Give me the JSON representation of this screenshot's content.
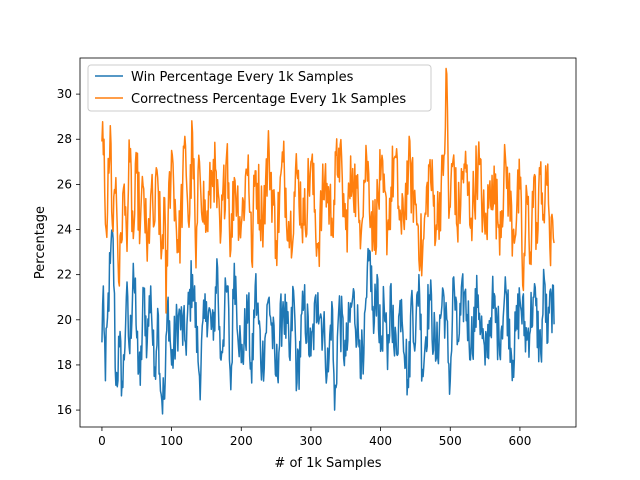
{
  "chart_data": {
    "type": "line",
    "title": "",
    "xlabel": "# of 1k Samples",
    "ylabel": "Percentage",
    "xlim": [
      -31.5,
      680.5
    ],
    "ylim": [
      15.25,
      31.6
    ],
    "xticks": [
      0,
      100,
      200,
      300,
      400,
      500,
      600
    ],
    "yticks": [
      16,
      18,
      20,
      22,
      24,
      26,
      28,
      30
    ],
    "grid": false,
    "legend_placement": "top-left",
    "n_points": 650,
    "series": [
      {
        "name": "Win Percentage Every 1k Samples",
        "color": "#1f77b4",
        "keypoints": [
          [
            0,
            19.0
          ],
          [
            2,
            21.5
          ],
          [
            5,
            17.3
          ],
          [
            8,
            20.1
          ],
          [
            12,
            22.5
          ],
          [
            16,
            23.6
          ],
          [
            20,
            17.1
          ],
          [
            25,
            18.8
          ],
          [
            30,
            17.0
          ],
          [
            35,
            21.0
          ],
          [
            40,
            18.5
          ],
          [
            45,
            22.5
          ],
          [
            50,
            19.2
          ],
          [
            55,
            17.1
          ],
          [
            60,
            21.3
          ],
          [
            65,
            19.0
          ],
          [
            70,
            21.5
          ],
          [
            75,
            17.5
          ],
          [
            80,
            20.5
          ],
          [
            85,
            16.7
          ],
          [
            90,
            16.5
          ],
          [
            95,
            21.0
          ],
          [
            100,
            18.0
          ],
          [
            110,
            20.2
          ],
          [
            120,
            19.0
          ],
          [
            130,
            22.0
          ],
          [
            140,
            17.5
          ],
          [
            150,
            20.8
          ],
          [
            160,
            19.1
          ],
          [
            165,
            22.7
          ],
          [
            170,
            18.3
          ],
          [
            180,
            21.5
          ],
          [
            185,
            16.9
          ],
          [
            190,
            22.5
          ],
          [
            200,
            18.1
          ],
          [
            210,
            20.5
          ],
          [
            215,
            17.2
          ],
          [
            220,
            21.5
          ],
          [
            230,
            18.0
          ],
          [
            240,
            21.0
          ],
          [
            250,
            17.5
          ],
          [
            260,
            20.8
          ],
          [
            270,
            18.2
          ],
          [
            275,
            21.3
          ],
          [
            280,
            17.2
          ],
          [
            290,
            20.7
          ],
          [
            300,
            18.4
          ],
          [
            310,
            21.2
          ],
          [
            320,
            19.0
          ],
          [
            325,
            17.7
          ],
          [
            330,
            20.8
          ],
          [
            334,
            16.0
          ],
          [
            340,
            20.5
          ],
          [
            350,
            18.4
          ],
          [
            360,
            21.0
          ],
          [
            370,
            19.1
          ],
          [
            375,
            17.6
          ],
          [
            380,
            21.0
          ],
          [
            385,
            23.0
          ],
          [
            390,
            19.4
          ],
          [
            395,
            22.0
          ],
          [
            400,
            18.6
          ],
          [
            405,
            20.7
          ],
          [
            410,
            17.8
          ],
          [
            415,
            21.6
          ],
          [
            420,
            18.4
          ],
          [
            430,
            20.9
          ],
          [
            440,
            17.0
          ],
          [
            445,
            21.3
          ],
          [
            450,
            19.0
          ],
          [
            455,
            22.0
          ],
          [
            460,
            17.8
          ],
          [
            470,
            21.1
          ],
          [
            480,
            18.3
          ],
          [
            490,
            21.3
          ],
          [
            500,
            17.3
          ],
          [
            505,
            21.9
          ],
          [
            510,
            18.9
          ],
          [
            520,
            21.2
          ],
          [
            530,
            19.0
          ],
          [
            540,
            21.1
          ],
          [
            550,
            18.0
          ],
          [
            560,
            20.8
          ],
          [
            570,
            19.2
          ],
          [
            580,
            21.3
          ],
          [
            590,
            18.2
          ],
          [
            600,
            20.9
          ],
          [
            610,
            19.1
          ],
          [
            620,
            21.0
          ],
          [
            630,
            18.5
          ],
          [
            635,
            21.8
          ],
          [
            640,
            19.0
          ],
          [
            645,
            21.1
          ],
          [
            649,
            19.8
          ]
        ]
      },
      {
        "name": "Correctness Percentage Every 1k Samples",
        "color": "#ff7f0e",
        "keypoints": [
          [
            0,
            27.9
          ],
          [
            3,
            28.0
          ],
          [
            6,
            24.0
          ],
          [
            10,
            26.5
          ],
          [
            12,
            28.6
          ],
          [
            15,
            24.2
          ],
          [
            20,
            26.3
          ],
          [
            25,
            21.5
          ],
          [
            30,
            25.6
          ],
          [
            35,
            24.0
          ],
          [
            40,
            27.0
          ],
          [
            45,
            23.6
          ],
          [
            50,
            26.5
          ],
          [
            55,
            24.1
          ],
          [
            60,
            25.8
          ],
          [
            65,
            22.6
          ],
          [
            70,
            25.5
          ],
          [
            75,
            24.2
          ],
          [
            80,
            26.3
          ],
          [
            85,
            22.7
          ],
          [
            90,
            25.4
          ],
          [
            92,
            20.3
          ],
          [
            95,
            24.6
          ],
          [
            100,
            27.5
          ],
          [
            110,
            23.0
          ],
          [
            120,
            27.7
          ],
          [
            125,
            24.1
          ],
          [
            130,
            28.3
          ],
          [
            135,
            22.3
          ],
          [
            140,
            27.0
          ],
          [
            150,
            24.0
          ],
          [
            160,
            27.1
          ],
          [
            170,
            23.4
          ],
          [
            180,
            27.8
          ],
          [
            185,
            23.1
          ],
          [
            190,
            26.3
          ],
          [
            200,
            24.2
          ],
          [
            210,
            27.3
          ],
          [
            215,
            22.6
          ],
          [
            220,
            26.6
          ],
          [
            230,
            24.5
          ],
          [
            240,
            27.4
          ],
          [
            250,
            23.5
          ],
          [
            260,
            27.0
          ],
          [
            270,
            23.8
          ],
          [
            280,
            26.5
          ],
          [
            290,
            24.2
          ],
          [
            300,
            27.0
          ],
          [
            310,
            23.2
          ],
          [
            320,
            26.3
          ],
          [
            330,
            24.5
          ],
          [
            340,
            27.6
          ],
          [
            350,
            24.0
          ],
          [
            360,
            26.7
          ],
          [
            370,
            24.4
          ],
          [
            380,
            27.2
          ],
          [
            390,
            23.7
          ],
          [
            400,
            26.2
          ],
          [
            410,
            24.1
          ],
          [
            420,
            27.2
          ],
          [
            430,
            23.8
          ],
          [
            440,
            26.8
          ],
          [
            450,
            25.1
          ],
          [
            460,
            22.7
          ],
          [
            470,
            26.8
          ],
          [
            480,
            24.2
          ],
          [
            490,
            26.4
          ],
          [
            495,
            30.9
          ],
          [
            498,
            24.5
          ],
          [
            505,
            27.3
          ],
          [
            510,
            24.1
          ],
          [
            520,
            26.9
          ],
          [
            530,
            24.5
          ],
          [
            540,
            27.1
          ],
          [
            550,
            23.8
          ],
          [
            560,
            26.4
          ],
          [
            570,
            24.2
          ],
          [
            580,
            26.8
          ],
          [
            590,
            23.9
          ],
          [
            600,
            25.8
          ],
          [
            605,
            21.3
          ],
          [
            610,
            25.6
          ],
          [
            615,
            23.0
          ],
          [
            620,
            26.3
          ],
          [
            625,
            23.4
          ],
          [
            630,
            27.0
          ],
          [
            635,
            24.3
          ],
          [
            640,
            26.9
          ],
          [
            644,
            22.4
          ],
          [
            647,
            24.4
          ],
          [
            649,
            23.4
          ]
        ]
      }
    ]
  }
}
